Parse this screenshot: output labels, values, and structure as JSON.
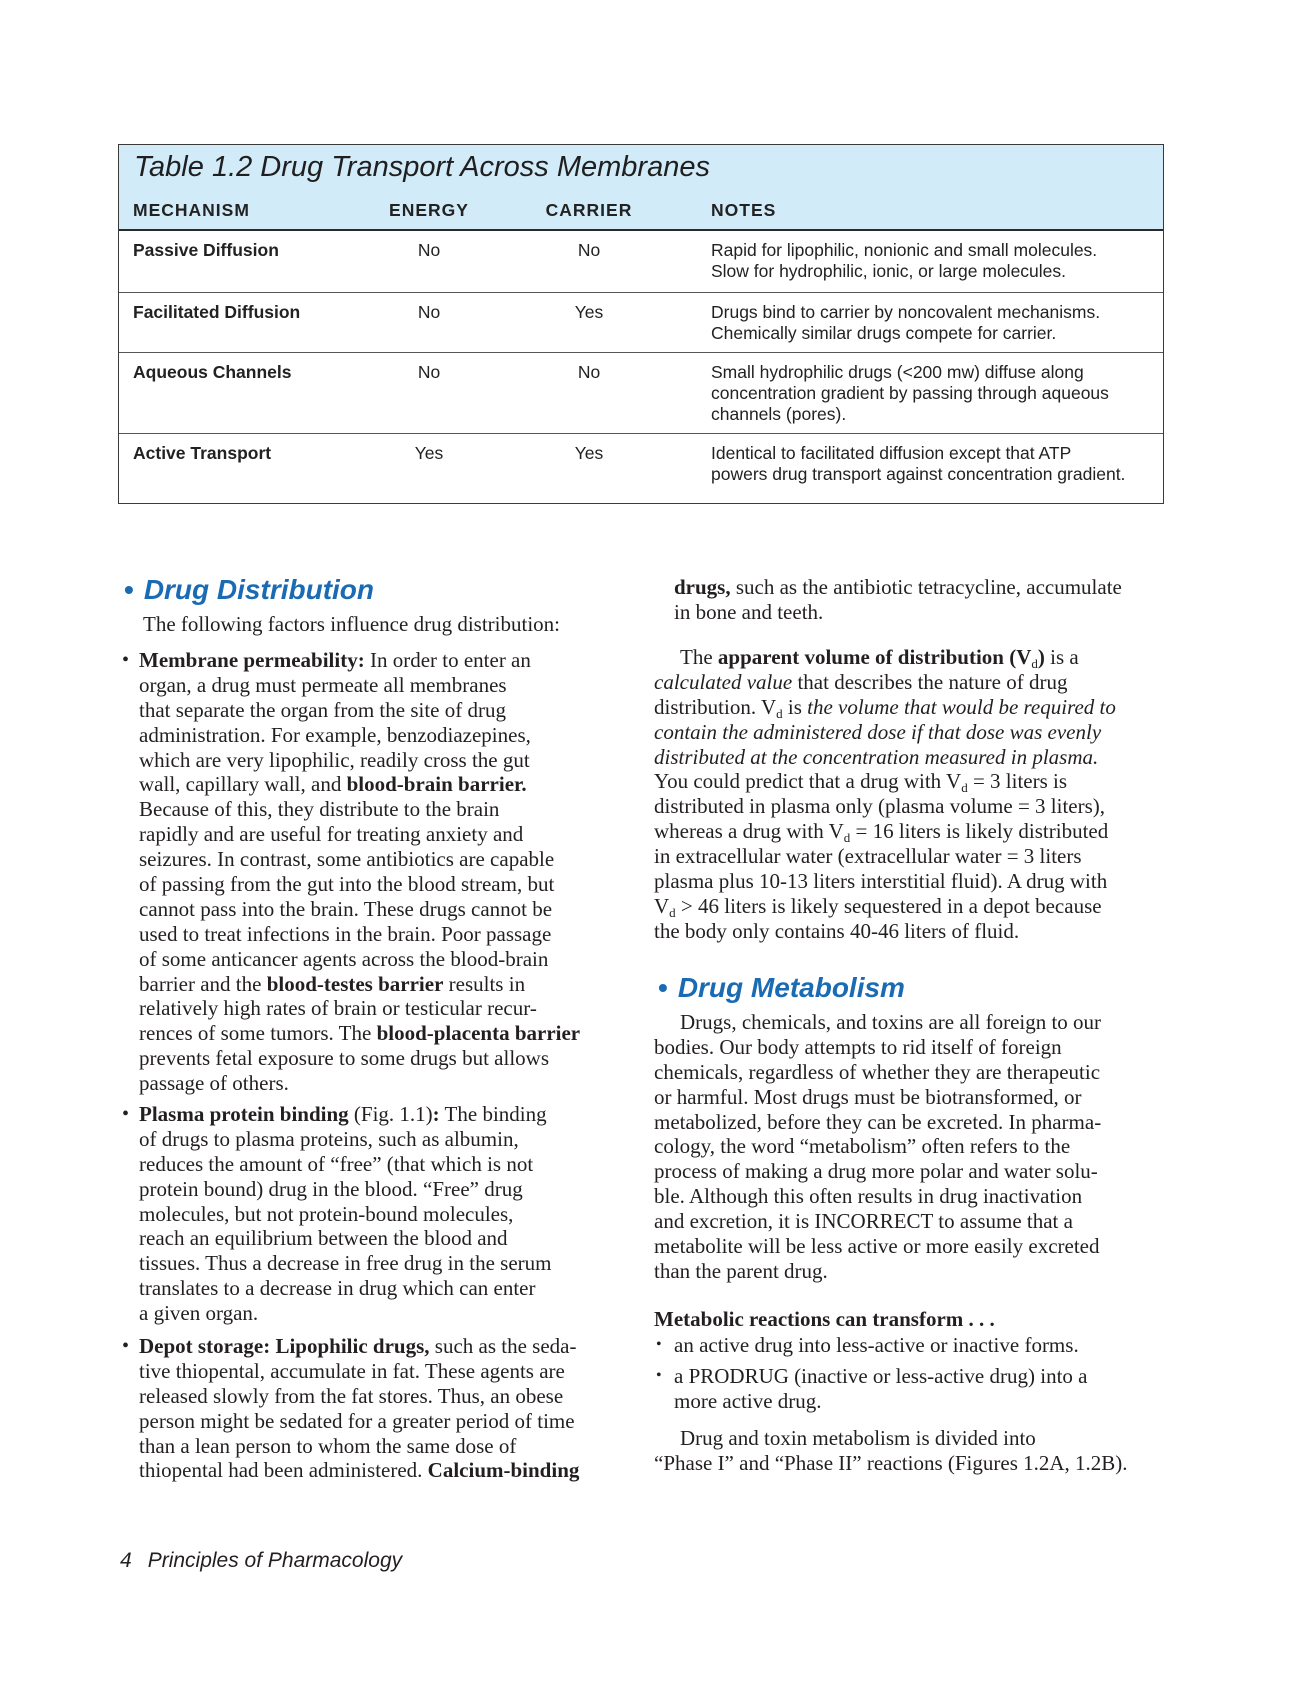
{
  "table": {
    "title": "Table 1.2  Drug Transport Across Membranes",
    "header_color": "#d2ebf9",
    "columns": [
      "MECHANISM",
      "ENERGY",
      "CARRIER",
      "NOTES"
    ],
    "rows": [
      {
        "mechanism": "Passive Diffusion",
        "energy": "No",
        "carrier": "No",
        "notes": [
          "Rapid for lipophilic, nonionic and small molecules.",
          "Slow for hydrophilic, ionic, or large molecules."
        ]
      },
      {
        "mechanism": "Facilitated Diffusion",
        "energy": "No",
        "carrier": "Yes",
        "notes": [
          "Drugs bind to carrier by noncovalent mechanisms.",
          "Chemically similar drugs compete for carrier."
        ]
      },
      {
        "mechanism": "Aqueous Channels",
        "energy": "No",
        "carrier": "No",
        "notes": [
          "Small hydrophilic drugs (<200 mw) diffuse along",
          "concentration gradient by passing through aqueous",
          "channels (pores)."
        ]
      },
      {
        "mechanism": "Active Transport",
        "energy": "Yes",
        "carrier": "Yes",
        "notes": [
          "Identical to facilitated diffusion except that ATP",
          "powers drug transport against concentration gradient."
        ]
      }
    ]
  },
  "heading_color": "#1a6bb3",
  "distribution": {
    "heading": "Drug Distribution",
    "bullet": "•",
    "intro": [
      [
        {
          "t": "The following factors influence drug distribution:"
        }
      ]
    ],
    "membrane": [
      [
        {
          "t": "Membrane permeability:",
          "style": "bold"
        },
        {
          "t": " In order to enter an"
        }
      ],
      [
        {
          "t": "organ, a drug must permeate all membranes"
        }
      ],
      [
        {
          "t": "that separate the organ from the site of drug"
        }
      ],
      [
        {
          "t": "administration. For example, benzodiazepines,"
        }
      ],
      [
        {
          "t": "which are very lipophilic, readily cross the gut"
        }
      ],
      [
        {
          "t": "wall, capillary wall, and "
        },
        {
          "t": "blood-brain barrier.",
          "style": "bold"
        }
      ],
      [
        {
          "t": "Because of this, they distribute to the brain"
        }
      ],
      [
        {
          "t": "rapidly and are useful for treating anxiety and"
        }
      ],
      [
        {
          "t": "seizures. In contrast, some antibiotics are capable"
        }
      ],
      [
        {
          "t": "of passing from the gut into the blood stream, but"
        }
      ],
      [
        {
          "t": "cannot pass into the brain. These drugs cannot be"
        }
      ],
      [
        {
          "t": "used to treat infections in the brain. Poor passage"
        }
      ],
      [
        {
          "t": "of some anticancer agents across the blood-brain"
        }
      ],
      [
        {
          "t": "barrier and the "
        },
        {
          "t": "blood-testes barrier",
          "style": "bold"
        },
        {
          "t": " results in"
        }
      ],
      [
        {
          "t": "relatively high rates of brain or testicular recur-"
        }
      ],
      [
        {
          "t": "rences of some tumors. The "
        },
        {
          "t": "blood-placenta barrier",
          "style": "bold"
        }
      ],
      [
        {
          "t": "prevents fetal exposure to some drugs but allows"
        }
      ],
      [
        {
          "t": "passage of others."
        }
      ]
    ],
    "plasma": [
      [
        {
          "t": "Plasma protein binding",
          "style": "bold"
        },
        {
          "t": " (Fig. 1.1)"
        },
        {
          "t": ":",
          "style": "bold"
        },
        {
          "t": " The binding"
        }
      ],
      [
        {
          "t": "of drugs to plasma proteins, such as albumin,"
        }
      ],
      [
        {
          "t": "reduces the amount of “free” (that which is not"
        }
      ],
      [
        {
          "t": "protein bound) drug in the blood. “Free” drug"
        }
      ],
      [
        {
          "t": "molecules, but not protein-bound molecules,"
        }
      ],
      [
        {
          "t": "reach an equilibrium between the blood and"
        }
      ],
      [
        {
          "t": "tissues. Thus a decrease in free drug in the serum"
        }
      ],
      [
        {
          "t": "translates to a decrease in drug which can enter"
        }
      ],
      [
        {
          "t": "a given organ."
        }
      ]
    ],
    "depot": [
      [
        {
          "t": "Depot storage: Lipophilic drugs,",
          "style": "bold"
        },
        {
          "t": " such as the seda-"
        }
      ],
      [
        {
          "t": "tive thiopental, accumulate in fat. These agents are"
        }
      ],
      [
        {
          "t": "released slowly from the fat stores. Thus, an obese"
        }
      ],
      [
        {
          "t": "person might be sedated for a greater period of time"
        }
      ],
      [
        {
          "t": "than a lean person to whom the same dose of"
        }
      ],
      [
        {
          "t": "thiopental had been administered. "
        },
        {
          "t": "Calcium-binding",
          "style": "bold"
        }
      ]
    ]
  },
  "right": {
    "continued": [
      [
        {
          "t": "drugs,",
          "style": "bold"
        },
        {
          "t": " such as the antibiotic tetracycline, accumulate"
        }
      ],
      [
        {
          "t": "in bone and teeth."
        }
      ]
    ],
    "vd": [
      [
        {
          "t": "The "
        },
        {
          "t": "apparent volume of distribution (V",
          "style": "bold"
        },
        {
          "t": "d",
          "style": "sub"
        },
        {
          "t": ")",
          "style": "bold"
        },
        {
          "t": " is a"
        }
      ],
      [
        {
          "t": "calculated value",
          "style": "ital"
        },
        {
          "t": " that describes the nature of drug"
        }
      ],
      [
        {
          "t": "distribution. V"
        },
        {
          "t": "d",
          "style": "sub"
        },
        {
          "t": " is "
        },
        {
          "t": "the volume that would be required to",
          "style": "ital"
        }
      ],
      [
        {
          "t": "contain the administered dose if that dose was evenly",
          "style": "ital"
        }
      ],
      [
        {
          "t": "distributed at the concentration measured in plasma.",
          "style": "ital"
        }
      ],
      [
        {
          "t": "You could predict that a drug with V"
        },
        {
          "t": "d",
          "style": "sub"
        },
        {
          "t": " = 3 liters is"
        }
      ],
      [
        {
          "t": "distributed in plasma only (plasma volume = 3 liters),"
        }
      ],
      [
        {
          "t": "whereas a drug with V"
        },
        {
          "t": "d",
          "style": "sub"
        },
        {
          "t": " = 16 liters is likely distributed"
        }
      ],
      [
        {
          "t": "in extracellular water (extracellular water = 3 liters"
        }
      ],
      [
        {
          "t": "plasma plus 10-13 liters interstitial fluid). A drug with"
        }
      ],
      [
        {
          "t": "V"
        },
        {
          "t": "d",
          "style": "sub"
        },
        {
          "t": " > 46 liters is likely sequestered in a depot because"
        }
      ],
      [
        {
          "t": "the body only contains 40-46 liters of fluid."
        }
      ]
    ],
    "metabolism_heading": "Drug Metabolism",
    "metabolism": [
      [
        {
          "t": "Drugs, chemicals, and toxins are all foreign to our"
        }
      ],
      [
        {
          "t": "bodies. Our body attempts to rid itself of foreign"
        }
      ],
      [
        {
          "t": "chemicals, regardless of whether they are therapeutic"
        }
      ],
      [
        {
          "t": "or harmful. Most drugs must be biotransformed, or"
        }
      ],
      [
        {
          "t": "metabolized, before they can be excreted. In pharma-"
        }
      ],
      [
        {
          "t": "cology, the word “metabolism” often refers to the"
        }
      ],
      [
        {
          "t": "process of making a drug more polar and water solu-"
        }
      ],
      [
        {
          "t": "ble. Although this often results in drug inactivation"
        }
      ],
      [
        {
          "t": "and excretion, it is INCORRECT to assume that a"
        }
      ],
      [
        {
          "t": "metabolite will be less active or more easily excreted"
        }
      ],
      [
        {
          "t": "than the parent drug."
        }
      ]
    ],
    "reactions_heading": [
      [
        {
          "t": "Metabolic reactions can transform . . .",
          "style": "bold"
        }
      ]
    ],
    "reaction1": [
      [
        {
          "t": "an active drug into less-active or inactive forms."
        }
      ]
    ],
    "reaction2": [
      [
        {
          "t": "a PRODRUG (inactive or less-active drug) into a"
        }
      ],
      [
        {
          "t": "more active drug."
        }
      ]
    ],
    "phases": [
      [
        {
          "t": "Drug and toxin metabolism is divided into"
        }
      ],
      [
        {
          "t": "“Phase I” and “Phase II” reactions (Figures 1.2A, 1.2B)."
        }
      ]
    ]
  },
  "footer": {
    "page_number": "4",
    "book_title": "Principles of Pharmacology"
  }
}
